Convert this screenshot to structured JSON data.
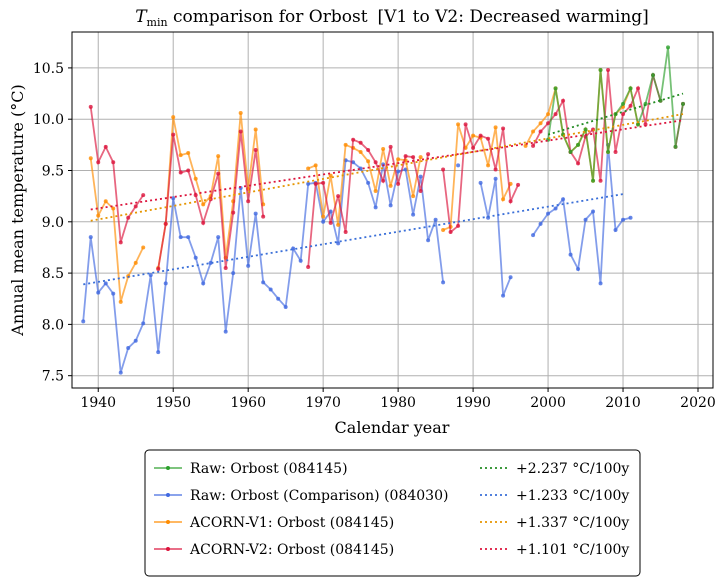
{
  "chart_data": {
    "type": "line",
    "title_var": "T",
    "title_sub": "min",
    "title_rest": " comparison for Orbost",
    "title_note": "[V1 to V2: Decreased warming]",
    "xlabel": "Calendar year",
    "ylabel": "Annual mean temperature (°C)",
    "xlim": [
      1936.5,
      2022
    ],
    "ylim": [
      7.38,
      10.85
    ],
    "xticks": [
      1940,
      1950,
      1960,
      1970,
      1980,
      1990,
      2000,
      2010,
      2020
    ],
    "yticks": [
      7.5,
      8.0,
      8.5,
      9.0,
      9.5,
      10.0,
      10.5
    ],
    "ytick_labels": [
      "7.5",
      "8.0",
      "8.5",
      "9.0",
      "9.5",
      "10.0",
      "10.5"
    ],
    "grid": true,
    "legend_position": "below",
    "series": [
      {
        "name": "Raw: Orbost (084145)",
        "color": "#2ca02c",
        "points": [
          [
            2000,
            9.8
          ],
          [
            2001,
            10.3
          ],
          [
            2002,
            9.85
          ],
          [
            2003,
            9.68
          ],
          [
            2004,
            9.75
          ],
          [
            2005,
            9.9
          ],
          [
            2006,
            9.4
          ],
          [
            2007,
            10.48
          ],
          [
            2008,
            9.68
          ],
          [
            2009,
            10.05
          ],
          [
            2010,
            10.15
          ],
          [
            2011,
            10.3
          ],
          [
            2012,
            9.95
          ],
          [
            2013,
            10.15
          ],
          [
            2014,
            10.43
          ],
          [
            2015,
            10.18
          ],
          [
            2016,
            10.7
          ],
          [
            2017,
            9.73
          ],
          [
            2018,
            10.15
          ]
        ]
      },
      {
        "name": "Raw: Orbost (Comparison) (084030)",
        "color": "#4169e1",
        "points": [
          [
            1938,
            8.03
          ],
          [
            1939,
            8.85
          ],
          [
            1940,
            8.31
          ],
          [
            1941,
            8.4
          ],
          [
            1942,
            8.3
          ],
          [
            1943,
            7.53
          ],
          [
            1944,
            7.77
          ],
          [
            1945,
            7.84
          ],
          [
            1946,
            8.01
          ],
          [
            1947,
            8.48
          ],
          [
            1948,
            7.73
          ],
          [
            1949,
            8.4
          ],
          [
            1950,
            9.23
          ],
          [
            1951,
            8.85
          ],
          [
            1952,
            8.85
          ],
          [
            1953,
            8.65
          ],
          [
            1954,
            8.4
          ],
          [
            1955,
            8.6
          ],
          [
            1956,
            8.85
          ],
          [
            1957,
            7.93
          ],
          [
            1958,
            8.5
          ],
          [
            1959,
            9.33
          ],
          [
            1960,
            8.57
          ],
          [
            1961,
            9.08
          ],
          [
            1962,
            8.41
          ],
          [
            1963,
            8.34
          ],
          [
            1964,
            8.25
          ],
          [
            1965,
            8.17
          ],
          [
            1966,
            8.74
          ],
          [
            1967,
            8.62
          ],
          [
            1968,
            9.37
          ],
          [
            1969,
            9.38
          ],
          [
            1970,
            9.0
          ],
          [
            1971,
            9.1
          ],
          [
            1972,
            8.79
          ],
          [
            1973,
            9.6
          ],
          [
            1974,
            9.58
          ],
          [
            1975,
            9.52
          ],
          [
            1976,
            9.38
          ],
          [
            1977,
            9.14
          ],
          [
            1978,
            9.56
          ],
          [
            1979,
            9.16
          ],
          [
            1980,
            9.49
          ],
          [
            1981,
            9.51
          ],
          [
            1982,
            9.07
          ],
          [
            1983,
            9.44
          ],
          [
            1984,
            8.82
          ],
          [
            1985,
            9.02
          ],
          [
            1986,
            8.41
          ],
          [
            1988,
            9.55
          ],
          [
            1991,
            9.38
          ],
          [
            1992,
            9.04
          ],
          [
            1993,
            9.42
          ],
          [
            1994,
            8.28
          ],
          [
            1995,
            8.46
          ],
          [
            1998,
            8.87
          ],
          [
            1999,
            8.98
          ],
          [
            2000,
            9.08
          ],
          [
            2001,
            9.13
          ],
          [
            2002,
            9.22
          ],
          [
            2003,
            8.68
          ],
          [
            2004,
            8.54
          ],
          [
            2005,
            9.02
          ],
          [
            2006,
            9.1
          ],
          [
            2007,
            8.4
          ],
          [
            2008,
            9.75
          ],
          [
            2009,
            8.92
          ],
          [
            2010,
            9.02
          ],
          [
            2011,
            9.04
          ]
        ]
      },
      {
        "name": "ACORN-V1: Orbost (084145)",
        "color": "#ff8c00",
        "points": [
          [
            1939,
            9.62
          ],
          [
            1940,
            9.06
          ],
          [
            1941,
            9.2
          ],
          [
            1942,
            9.13
          ],
          [
            1943,
            8.22
          ],
          [
            1944,
            8.47
          ],
          [
            1945,
            8.6
          ],
          [
            1946,
            8.75
          ],
          [
            1948,
            8.55
          ],
          [
            1949,
            8.98
          ],
          [
            1950,
            10.02
          ],
          [
            1951,
            9.65
          ],
          [
            1952,
            9.67
          ],
          [
            1953,
            9.42
          ],
          [
            1954,
            9.17
          ],
          [
            1955,
            9.25
          ],
          [
            1956,
            9.64
          ],
          [
            1957,
            8.65
          ],
          [
            1958,
            9.2
          ],
          [
            1959,
            10.06
          ],
          [
            1960,
            9.32
          ],
          [
            1961,
            9.9
          ],
          [
            1962,
            9.17
          ],
          [
            1968,
            9.52
          ],
          [
            1969,
            9.55
          ],
          [
            1970,
            9.05
          ],
          [
            1971,
            9.45
          ],
          [
            1972,
            8.97
          ],
          [
            1973,
            9.75
          ],
          [
            1974,
            9.72
          ],
          [
            1975,
            9.68
          ],
          [
            1976,
            9.59
          ],
          [
            1977,
            9.3
          ],
          [
            1978,
            9.71
          ],
          [
            1979,
            9.35
          ],
          [
            1980,
            9.61
          ],
          [
            1981,
            9.6
          ],
          [
            1982,
            9.25
          ],
          [
            1983,
            9.63
          ],
          [
            1986,
            8.92
          ],
          [
            1987,
            8.95
          ],
          [
            1988,
            9.95
          ],
          [
            1989,
            9.72
          ],
          [
            1990,
            9.84
          ],
          [
            1991,
            9.82
          ],
          [
            1992,
            9.55
          ],
          [
            1993,
            9.92
          ],
          [
            1994,
            9.22
          ],
          [
            1995,
            9.37
          ],
          [
            1997,
            9.74
          ],
          [
            1998,
            9.88
          ],
          [
            1999,
            9.96
          ],
          [
            2000,
            10.05
          ],
          [
            2001,
            10.3
          ],
          [
            2002,
            9.85
          ],
          [
            2003,
            9.68
          ],
          [
            2004,
            9.75
          ],
          [
            2005,
            9.9
          ],
          [
            2006,
            9.4
          ],
          [
            2007,
            10.48
          ],
          [
            2008,
            9.68
          ],
          [
            2009,
            10.05
          ],
          [
            2010,
            10.12
          ],
          [
            2011,
            10.3
          ],
          [
            2012,
            9.95
          ]
        ]
      },
      {
        "name": "ACORN-V2: Orbost (084145)",
        "color": "#dc143c",
        "points": [
          [
            1939,
            10.12
          ],
          [
            1940,
            9.58
          ],
          [
            1941,
            9.73
          ],
          [
            1942,
            9.58
          ],
          [
            1943,
            8.8
          ],
          [
            1944,
            9.04
          ],
          [
            1945,
            9.15
          ],
          [
            1946,
            9.26
          ],
          [
            1948,
            8.54
          ],
          [
            1949,
            8.98
          ],
          [
            1950,
            9.85
          ],
          [
            1951,
            9.48
          ],
          [
            1952,
            9.5
          ],
          [
            1953,
            9.26
          ],
          [
            1954,
            8.99
          ],
          [
            1955,
            9.22
          ],
          [
            1956,
            9.47
          ],
          [
            1957,
            8.55
          ],
          [
            1958,
            9.09
          ],
          [
            1959,
            9.88
          ],
          [
            1960,
            9.2
          ],
          [
            1961,
            9.7
          ],
          [
            1962,
            9.05
          ],
          [
            1968,
            8.56
          ],
          [
            1969,
            9.37
          ],
          [
            1970,
            9.38
          ],
          [
            1971,
            8.99
          ],
          [
            1972,
            9.25
          ],
          [
            1973,
            8.9
          ],
          [
            1974,
            9.8
          ],
          [
            1975,
            9.77
          ],
          [
            1976,
            9.7
          ],
          [
            1977,
            9.58
          ],
          [
            1978,
            9.4
          ],
          [
            1979,
            9.73
          ],
          [
            1980,
            9.37
          ],
          [
            1981,
            9.64
          ],
          [
            1982,
            9.63
          ],
          [
            1983,
            9.3
          ],
          [
            1984,
            9.66
          ],
          [
            1986,
            9.51
          ],
          [
            1987,
            8.9
          ],
          [
            1988,
            8.96
          ],
          [
            1989,
            9.95
          ],
          [
            1990,
            9.72
          ],
          [
            1991,
            9.84
          ],
          [
            1992,
            9.81
          ],
          [
            1993,
            9.51
          ],
          [
            1994,
            9.91
          ],
          [
            1995,
            9.2
          ],
          [
            1996,
            9.36
          ],
          [
            1998,
            9.74
          ],
          [
            1999,
            9.88
          ],
          [
            2000,
            9.96
          ],
          [
            2001,
            10.05
          ],
          [
            2002,
            10.18
          ],
          [
            2003,
            9.68
          ],
          [
            2004,
            9.57
          ],
          [
            2005,
            9.83
          ],
          [
            2006,
            9.9
          ],
          [
            2007,
            9.4
          ],
          [
            2008,
            10.48
          ],
          [
            2009,
            9.68
          ],
          [
            2010,
            10.05
          ],
          [
            2011,
            10.13
          ],
          [
            2012,
            10.3
          ],
          [
            2013,
            9.95
          ],
          [
            2014,
            10.43
          ],
          [
            2015,
            10.18
          ],
          [
            2017,
            9.73
          ],
          [
            2018,
            10.15
          ]
        ]
      }
    ],
    "trends": [
      {
        "name": "+2.237 °C/100y",
        "color": "#228b22",
        "x": [
          2000,
          2018
        ],
        "y": [
          9.85,
          10.25
        ]
      },
      {
        "name": "+1.233 °C/100y",
        "color": "#3a6fd8",
        "x": [
          1938,
          2010
        ],
        "y": [
          8.39,
          9.27
        ]
      },
      {
        "name": "+1.337 °C/100y",
        "color": "#e69500",
        "x": [
          1939,
          2018
        ],
        "y": [
          9.01,
          10.05
        ]
      },
      {
        "name": "+1.101 °C/100y",
        "color": "#dc143c",
        "x": [
          1939,
          2018
        ],
        "y": [
          9.12,
          9.99
        ]
      }
    ]
  }
}
